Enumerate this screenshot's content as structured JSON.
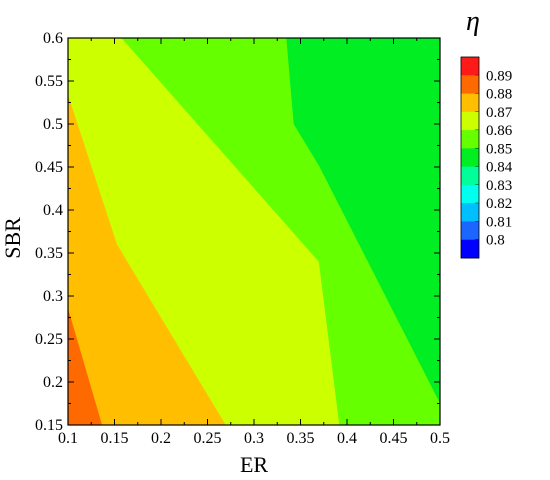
{
  "chart_data": {
    "type": "heatmap",
    "subtype": "filled-contour",
    "xlabel": "ER",
    "ylabel": "SBR",
    "colorbar_title": "η",
    "xlim": [
      0.1,
      0.5
    ],
    "ylim": [
      0.15,
      0.6
    ],
    "x_ticks": [
      "0.1",
      "0.15",
      "0.2",
      "0.25",
      "0.3",
      "0.35",
      "0.4",
      "0.45",
      "0.5"
    ],
    "y_ticks": [
      "0.15",
      "0.2",
      "0.25",
      "0.3",
      "0.35",
      "0.4",
      "0.45",
      "0.5",
      "0.55",
      "0.6"
    ],
    "legend_position": "right",
    "levels": [
      {
        "label": "0.89",
        "color": "#ff1a1a"
      },
      {
        "label": "0.88",
        "color": "#ff6a00"
      },
      {
        "label": "0.87",
        "color": "#ffbf00"
      },
      {
        "label": "0.86",
        "color": "#ccff00"
      },
      {
        "label": "0.85",
        "color": "#66ff00"
      },
      {
        "label": "0.84",
        "color": "#00ee22"
      },
      {
        "label": "0.83",
        "color": "#00ff99"
      },
      {
        "label": "0.82",
        "color": "#00ffee"
      },
      {
        "label": "0.81",
        "color": "#00bfff"
      },
      {
        "label": "0.8",
        "color": "#1a66ff"
      },
      {
        "label": "",
        "color": "#0000ff"
      }
    ],
    "regions": [
      {
        "level": "0.88",
        "color": "#ff6a00",
        "polygon": [
          [
            0.1,
            0.15
          ],
          [
            0.1,
            0.287
          ],
          [
            0.137,
            0.15
          ]
        ]
      },
      {
        "level": "0.87",
        "color": "#ffbf00",
        "polygon": [
          [
            0.1,
            0.287
          ],
          [
            0.1,
            0.535
          ],
          [
            0.153,
            0.36
          ],
          [
            0.27,
            0.15
          ],
          [
            0.137,
            0.15
          ]
        ]
      },
      {
        "level": "0.86",
        "color": "#ccff00",
        "polygon": [
          [
            0.1,
            0.535
          ],
          [
            0.1,
            0.6
          ],
          [
            0.158,
            0.6
          ],
          [
            0.37,
            0.34
          ],
          [
            0.392,
            0.15
          ],
          [
            0.27,
            0.15
          ],
          [
            0.153,
            0.36
          ]
        ]
      },
      {
        "level": "0.85",
        "color": "#66ff00",
        "polygon": [
          [
            0.158,
            0.6
          ],
          [
            0.335,
            0.6
          ],
          [
            0.343,
            0.5
          ],
          [
            0.37,
            0.452
          ],
          [
            0.5,
            0.176
          ],
          [
            0.5,
            0.15
          ],
          [
            0.392,
            0.15
          ],
          [
            0.37,
            0.34
          ]
        ]
      },
      {
        "level": "0.84",
        "color": "#00ee22",
        "polygon": [
          [
            0.335,
            0.6
          ],
          [
            0.5,
            0.6
          ],
          [
            0.5,
            0.176
          ],
          [
            0.37,
            0.452
          ],
          [
            0.343,
            0.5
          ]
        ]
      }
    ]
  }
}
